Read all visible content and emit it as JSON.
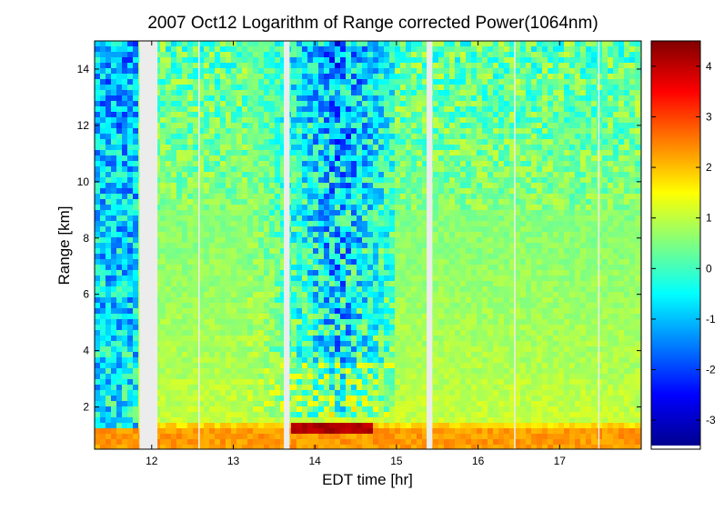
{
  "chart_data": {
    "type": "heatmap",
    "title": "2007 Oct12  Logarithm of Range corrected Power(1064nm)",
    "xlabel": "EDT time [hr]",
    "ylabel": "Range [km]",
    "xlim": [
      11.3,
      18.0
    ],
    "ylim": [
      0.5,
      15
    ],
    "xticks": [
      {
        "value": 12,
        "label": "12"
      },
      {
        "value": 13,
        "label": "13"
      },
      {
        "value": 14,
        "label": "14"
      },
      {
        "value": 15,
        "label": "15"
      },
      {
        "value": 16,
        "label": "16"
      },
      {
        "value": 17,
        "label": "17"
      }
    ],
    "yticks": [
      {
        "value": 2,
        "label": "2"
      },
      {
        "value": 4,
        "label": "4"
      },
      {
        "value": 6,
        "label": "6"
      },
      {
        "value": 8,
        "label": "8"
      },
      {
        "value": 10,
        "label": "10"
      },
      {
        "value": 12,
        "label": "12"
      },
      {
        "value": 14,
        "label": "14"
      }
    ],
    "colorbar": {
      "colormap": "jet",
      "clim": [
        -3.5,
        4.5
      ],
      "ticks": [
        {
          "value": 4,
          "label": "4"
        },
        {
          "value": 3,
          "label": "3"
        },
        {
          "value": 2,
          "label": "2"
        },
        {
          "value": 1,
          "label": "1"
        },
        {
          "value": 0,
          "label": "0"
        },
        {
          "value": -1,
          "label": "-1"
        },
        {
          "value": -2,
          "label": "-2"
        },
        {
          "value": -3,
          "label": "-3"
        }
      ]
    },
    "data_gaps_hr": [
      [
        11.85,
        12.07
      ],
      [
        13.62,
        13.69
      ],
      [
        15.37,
        15.44
      ]
    ],
    "thin_gaps_hr": [
      12.58,
      16.45,
      17.48
    ]
  }
}
